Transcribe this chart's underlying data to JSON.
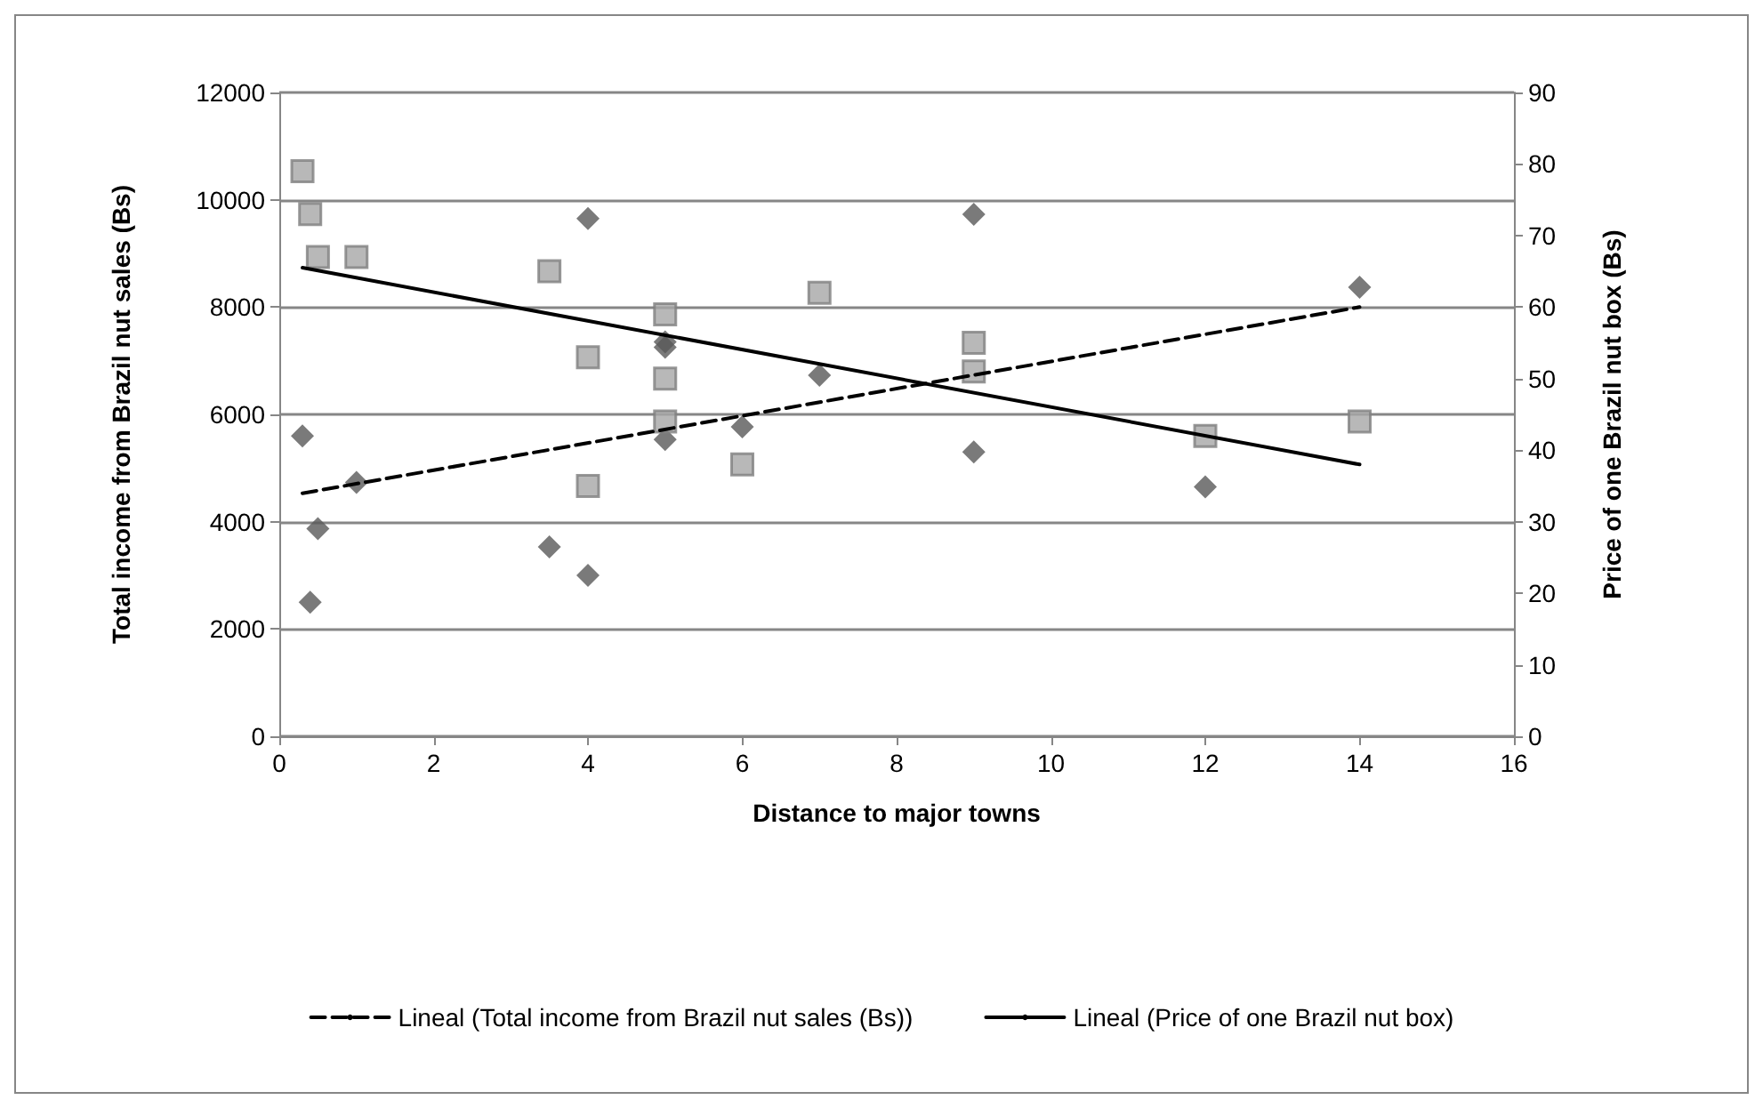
{
  "chart_data": {
    "type": "scatter",
    "xlabel": "Distance to major towns",
    "ylabel": "Total income from Brazil nut sales (Bs)",
    "y2label": "Price of one Brazil nut box (Bs)",
    "xlim": [
      0,
      16
    ],
    "xticks": [
      0,
      2,
      4,
      6,
      8,
      10,
      12,
      14,
      16
    ],
    "ylim": [
      0,
      12000
    ],
    "yticks": [
      0,
      2000,
      4000,
      6000,
      8000,
      10000,
      12000
    ],
    "y2lim": [
      0,
      90
    ],
    "y2ticks": [
      0,
      10,
      20,
      30,
      40,
      50,
      60,
      70,
      80,
      90
    ],
    "grid": "y",
    "legend": "bottom",
    "series": [
      {
        "marker": "diamond",
        "color": "#595959",
        "x": [
          0.3,
          0.4,
          0.5,
          1,
          3.5,
          4,
          4,
          5,
          5,
          5,
          6,
          7,
          9,
          9,
          12,
          14
        ],
        "values": [
          5600,
          2500,
          3870,
          4730,
          3530,
          9650,
          3000,
          7350,
          7250,
          5530,
          5770,
          6730,
          9730,
          5300,
          4650,
          8370
        ]
      },
      {
        "marker": "square",
        "color": "#a6a6a6",
        "axis": "y2",
        "x": [
          0.3,
          0.4,
          0.5,
          1,
          3.5,
          4,
          4,
          5,
          5,
          5,
          6,
          7,
          9,
          9,
          12,
          14
        ],
        "values": [
          79,
          73,
          67,
          67,
          65,
          53,
          35,
          59,
          50,
          44,
          38,
          62,
          55,
          51,
          42,
          44
        ]
      },
      {
        "type": "line",
        "name": "Lineal (Total income from Brazil nut sales (Bs))",
        "color": "#000000",
        "line_style": "dashed",
        "marker": "none",
        "x": [
          0.3,
          14
        ],
        "values": [
          4530,
          8000
        ]
      },
      {
        "type": "line",
        "name": "Lineal (Price of one Brazil nut box)",
        "color": "#000000",
        "line_style": "solid",
        "marker": "none",
        "axis": "y2",
        "x": [
          0.3,
          14
        ],
        "values": [
          65.5,
          38
        ]
      }
    ]
  }
}
